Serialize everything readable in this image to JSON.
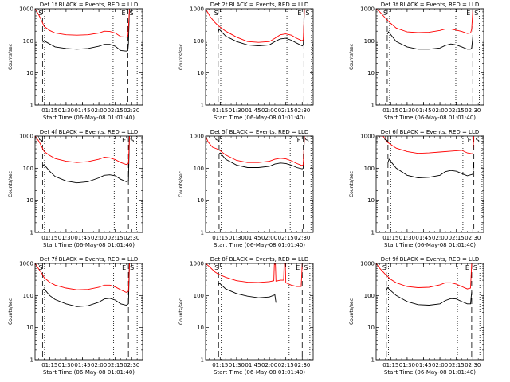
{
  "figure": {
    "background": "#ffffff"
  },
  "common": {
    "ylabel": "Counts/sec",
    "xlabel": "Start Time (06-May-08 01:01:40)",
    "xticklabels": [
      "01:15",
      "01:30",
      "01:45",
      "02:00",
      "02:15",
      "02:30"
    ],
    "yticklabels": [
      "1",
      "10",
      "100",
      "1000"
    ],
    "series_colors": {
      "events": "#000000",
      "lld": "#ff0000"
    },
    "marker_S": "S",
    "marker_E": "E"
  },
  "chart_data": [
    {
      "type": "line",
      "title": "Det 1f BLACK = Events, RED = LLD",
      "xlim": [
        "01:01:40",
        "02:40:00"
      ],
      "ylim": [
        1,
        1000
      ],
      "yscale": "log",
      "xlabel": "Start Time (06-May-08 01:01:40)",
      "ylabel": "Counts/sec",
      "vlines": {
        "dashed": [
          "01:08:30",
          "02:26:30"
        ],
        "dotted": [
          "01:10:20",
          "02:13:00",
          "02:35:00"
        ]
      },
      "series": [
        {
          "name": "BLACK = Events",
          "color": "#000000",
          "x": [
            "01:08:40",
            "01:10:00",
            "01:15:00",
            "01:20:00",
            "01:30:00",
            "01:40:00",
            "01:50:00",
            "02:00:00",
            "02:05:00",
            "02:10:00",
            "02:15:00",
            "02:20:00",
            "02:25:00",
            "02:26:30",
            "02:27:00",
            "02:28:00"
          ],
          "y": [
            90,
            100,
            80,
            65,
            58,
            55,
            58,
            68,
            78,
            78,
            68,
            50,
            48,
            50,
            80,
            1000
          ]
        },
        {
          "name": "RED = LLD",
          "color": "#ff0000",
          "x": [
            "01:01:40",
            "01:05:00",
            "01:08:00",
            "01:10:00",
            "01:15:00",
            "01:20:00",
            "01:30:00",
            "01:40:00",
            "01:50:00",
            "02:00:00",
            "02:05:00",
            "02:10:00",
            "02:15:00",
            "02:20:00",
            "02:25:00",
            "02:26:30",
            "02:27:00",
            "02:28:00"
          ],
          "y": [
            1000,
            650,
            400,
            280,
            210,
            175,
            155,
            150,
            155,
            175,
            200,
            195,
            175,
            135,
            130,
            140,
            250,
            1000
          ]
        }
      ]
    },
    {
      "type": "line",
      "title": "Det 2f BLACK = Events, RED = LLD",
      "xlim": [
        "01:01:40",
        "02:40:00"
      ],
      "ylim": [
        1,
        1000
      ],
      "yscale": "log",
      "xlabel": "Start Time (06-May-08 01:01:40)",
      "ylabel": "Counts/sec",
      "vlines": {
        "dashed": [
          "01:13:10",
          "02:31:30"
        ],
        "dotted": [
          "01:15:30",
          "02:16:00",
          "02:38:30"
        ]
      },
      "series": [
        {
          "name": "BLACK = Events",
          "color": "#000000",
          "x": [
            "01:13:10",
            "01:14:00",
            "01:20:00",
            "01:30:00",
            "01:40:00",
            "01:50:00",
            "02:00:00",
            "02:05:00",
            "02:10:00",
            "02:15:00",
            "02:20:00",
            "02:25:00",
            "02:30:00",
            "02:31:00",
            "02:32:00"
          ],
          "y": [
            180,
            230,
            140,
            95,
            75,
            70,
            75,
            95,
            115,
            120,
            105,
            85,
            70,
            75,
            1000
          ]
        },
        {
          "name": "RED = LLD",
          "color": "#ff0000",
          "x": [
            "01:01:40",
            "01:06:00",
            "01:10:00",
            "01:13:00",
            "01:20:00",
            "01:30:00",
            "01:40:00",
            "01:50:00",
            "02:00:00",
            "02:05:00",
            "02:10:00",
            "02:15:00",
            "02:20:00",
            "02:25:00",
            "02:30:00",
            "02:31:00",
            "02:32:00"
          ],
          "y": [
            1000,
            560,
            380,
            300,
            200,
            130,
            95,
            90,
            95,
            120,
            155,
            165,
            150,
            120,
            100,
            110,
            1000
          ]
        }
      ]
    },
    {
      "type": "line",
      "title": "Det 3f BLACK = Events, RED = LLD",
      "xlim": [
        "01:01:40",
        "02:40:00"
      ],
      "ylim": [
        1,
        1000
      ],
      "yscale": "log",
      "xlabel": "Start Time (06-May-08 01:01:40)",
      "ylabel": "Counts/sec",
      "vlines": {
        "dashed": [
          "01:11:50",
          "02:30:00"
        ],
        "dotted": [
          "01:14:00",
          "02:14:30",
          "02:36:00"
        ]
      },
      "series": [
        {
          "name": "BLACK = Events",
          "color": "#000000",
          "x": [
            "01:11:50",
            "01:13:00",
            "01:20:00",
            "01:30:00",
            "01:40:00",
            "01:50:00",
            "02:00:00",
            "02:05:00",
            "02:10:00",
            "02:15:00",
            "02:20:00",
            "02:25:00",
            "02:28:00",
            "02:29:00",
            "02:30:00"
          ],
          "y": [
            160,
            190,
            95,
            65,
            55,
            55,
            60,
            72,
            80,
            75,
            65,
            55,
            55,
            60,
            130
          ]
        },
        {
          "name": "RED = LLD",
          "color": "#ff0000",
          "x": [
            "01:01:40",
            "01:05:00",
            "01:10:00",
            "01:15:00",
            "01:20:00",
            "01:30:00",
            "01:40:00",
            "01:50:00",
            "02:00:00",
            "02:05:00",
            "02:10:00",
            "02:15:00",
            "02:20:00",
            "02:25:00",
            "02:28:00",
            "02:29:00",
            "02:30:00"
          ],
          "y": [
            1000,
            800,
            520,
            350,
            250,
            190,
            180,
            185,
            210,
            235,
            235,
            215,
            195,
            170,
            175,
            230,
            900
          ]
        }
      ]
    },
    {
      "type": "line",
      "title": "Det 4f BLACK = Events, RED = LLD",
      "xlim": [
        "01:01:40",
        "02:40:00"
      ],
      "ylim": [
        1,
        1000
      ],
      "yscale": "log",
      "xlabel": "Start Time (06-May-08 01:01:40)",
      "ylabel": "Counts/sec",
      "vlines": {
        "dashed": [
          "01:08:30",
          "02:27:00"
        ],
        "dotted": [
          "01:10:20",
          "02:14:00",
          "02:34:30"
        ]
      },
      "series": [
        {
          "name": "BLACK = Events",
          "color": "#000000",
          "x": [
            "01:08:40",
            "01:10:00",
            "01:15:00",
            "01:20:00",
            "01:30:00",
            "01:40:00",
            "01:50:00",
            "02:00:00",
            "02:05:00",
            "02:10:00",
            "02:15:00",
            "02:20:00",
            "02:25:00",
            "02:27:00",
            "02:28:00"
          ],
          "y": [
            120,
            130,
            80,
            55,
            40,
            35,
            38,
            50,
            60,
            62,
            58,
            45,
            38,
            40,
            1000
          ]
        },
        {
          "name": "RED = LLD",
          "color": "#ff0000",
          "x": [
            "01:01:40",
            "01:05:00",
            "01:08:00",
            "01:10:00",
            "01:15:00",
            "01:20:00",
            "01:30:00",
            "01:40:00",
            "01:50:00",
            "02:00:00",
            "02:05:00",
            "02:10:00",
            "02:15:00",
            "02:20:00",
            "02:25:00",
            "02:27:00",
            "02:28:00"
          ],
          "y": [
            1000,
            700,
            450,
            330,
            250,
            200,
            165,
            150,
            160,
            190,
            220,
            210,
            185,
            150,
            130,
            140,
            1000
          ]
        }
      ]
    },
    {
      "type": "line",
      "title": "Det 5f BLACK = Events, RED = LLD",
      "xlim": [
        "01:01:40",
        "02:40:00"
      ],
      "ylim": [
        1,
        1000
      ],
      "yscale": "log",
      "xlabel": "Start Time (06-May-08 01:01:40)",
      "ylabel": "Counts/sec",
      "vlines": {
        "dashed": [
          "01:14:00",
          "02:31:00"
        ],
        "dotted": [
          "01:16:00",
          "02:19:00",
          "02:38:00"
        ]
      },
      "series": [
        {
          "name": "BLACK = Events",
          "color": "#000000",
          "x": [
            "01:14:00",
            "01:15:00",
            "01:20:00",
            "01:30:00",
            "01:40:00",
            "01:50:00",
            "02:00:00",
            "02:05:00",
            "02:10:00",
            "02:15:00",
            "02:20:00",
            "02:25:00",
            "02:30:00",
            "02:31:00",
            "02:32:00"
          ],
          "y": [
            280,
            300,
            190,
            125,
            105,
            105,
            115,
            135,
            145,
            140,
            125,
            105,
            95,
            100,
            1000
          ]
        },
        {
          "name": "RED = LLD",
          "color": "#ff0000",
          "x": [
            "01:01:40",
            "01:04:00",
            "01:08:00",
            "01:12:00",
            "01:15:00",
            "01:20:00",
            "01:30:00",
            "01:40:00",
            "01:50:00",
            "02:00:00",
            "02:05:00",
            "02:10:00",
            "02:15:00",
            "02:20:00",
            "02:25:00",
            "02:30:00",
            "02:31:00",
            "02:32:00"
          ],
          "y": [
            1000,
            650,
            450,
            400,
            350,
            260,
            175,
            150,
            150,
            165,
            190,
            205,
            195,
            170,
            140,
            120,
            130,
            1000
          ]
        }
      ]
    },
    {
      "type": "line",
      "title": "Det 6f BLACK = Events, RED = LLD",
      "xlim": [
        "01:01:40",
        "02:40:00"
      ],
      "ylim": [
        1,
        1000
      ],
      "yscale": "log",
      "xlabel": "Start Time (06-May-08 01:01:40)",
      "ylabel": "Counts/sec",
      "vlines": {
        "dashed": [
          "01:12:30",
          "02:31:00"
        ],
        "dotted": [
          "01:15:00",
          "02:21:00",
          "02:38:30"
        ]
      },
      "series": [
        {
          "name": "BLACK = Events",
          "color": "#000000",
          "x": [
            "01:12:30",
            "01:13:30",
            "01:20:00",
            "01:30:00",
            "01:40:00",
            "01:50:00",
            "02:00:00",
            "02:05:00",
            "02:10:00",
            "02:15:00",
            "02:20:00",
            "02:25:00",
            "02:30:00",
            "02:31:00"
          ],
          "y": [
            150,
            190,
            100,
            60,
            50,
            52,
            60,
            78,
            85,
            80,
            68,
            58,
            65,
            150
          ]
        },
        {
          "name": "RED = LLD",
          "color": "#ff0000",
          "x": [
            "01:01:40",
            "01:08:00",
            "01:12:00",
            "01:20:00",
            "01:30:00",
            "01:40:00",
            "01:50:00",
            "02:00:00",
            "02:10:00",
            "02:20:00",
            "02:25:00",
            "02:30:00",
            "02:31:00"
          ],
          "y": [
            1000,
            1000,
            640,
            420,
            330,
            290,
            300,
            320,
            340,
            360,
            300,
            280,
            1000
          ]
        }
      ]
    },
    {
      "type": "line",
      "title": "Det 7f BLACK = Events, RED = LLD",
      "xlim": [
        "01:01:40",
        "02:40:00"
      ],
      "ylim": [
        1,
        1000
      ],
      "yscale": "log",
      "xlabel": "Start Time (06-May-08 01:01:40)",
      "ylabel": "Counts/sec",
      "vlines": {
        "dashed": [
          "01:08:30",
          "02:27:00"
        ],
        "dotted": [
          "01:10:20",
          "02:13:30",
          "02:35:00"
        ]
      },
      "series": [
        {
          "name": "BLACK = Events",
          "color": "#000000",
          "x": [
            "01:08:40",
            "01:10:00",
            "01:15:00",
            "01:20:00",
            "01:30:00",
            "01:40:00",
            "01:50:00",
            "02:00:00",
            "02:05:00",
            "02:10:00",
            "02:15:00",
            "02:20:00",
            "02:25:00",
            "02:27:00",
            "02:28:00"
          ],
          "y": [
            150,
            160,
            100,
            75,
            55,
            45,
            48,
            62,
            78,
            82,
            72,
            55,
            50,
            55,
            1000
          ]
        },
        {
          "name": "RED = LLD",
          "color": "#ff0000",
          "x": [
            "01:01:40",
            "01:04:00",
            "01:08:00",
            "01:10:00",
            "01:15:00",
            "01:20:00",
            "01:30:00",
            "01:40:00",
            "01:50:00",
            "02:00:00",
            "02:05:00",
            "02:10:00",
            "02:15:00",
            "02:20:00",
            "02:25:00",
            "02:27:00",
            "02:28:00"
          ],
          "y": [
            1000,
            750,
            480,
            360,
            260,
            210,
            170,
            150,
            155,
            180,
            210,
            210,
            185,
            150,
            125,
            135,
            1000
          ]
        }
      ]
    },
    {
      "type": "line",
      "title": "Det 8f BLACK = Events, RED = LLD",
      "xlim": [
        "01:01:40",
        "02:40:00"
      ],
      "ylim": [
        1,
        1000
      ],
      "yscale": "log",
      "xlabel": "Start Time (06-May-08 01:01:40)",
      "ylabel": "Counts/sec",
      "vlines": {
        "dashed": [
          "01:13:30",
          "02:30:00"
        ],
        "dotted": [
          "01:16:00",
          "02:18:00",
          "02:37:00"
        ]
      },
      "series": [
        {
          "name": "BLACK = Events",
          "color": "#000000",
          "x": [
            "01:13:30",
            "01:14:30",
            "01:20:00",
            "01:30:00",
            "01:40:00",
            "01:50:00",
            "02:00:00",
            "02:05:00",
            "02:06:00"
          ],
          "y": [
            220,
            240,
            160,
            115,
            95,
            85,
            90,
            105,
            60
          ]
        },
        {
          "name": "RED = LLD",
          "color": "#ff0000",
          "x": [
            "01:01:40",
            "01:05:00",
            "01:10:00",
            "01:13:00",
            "01:20:00",
            "01:30:00",
            "01:40:00",
            "01:50:00",
            "02:00:00",
            "02:04:00",
            "02:04:30",
            "02:05:30",
            "02:06:00",
            "02:10:00",
            "02:13:00",
            "02:13:30",
            "02:14:30",
            "02:15:00",
            "02:20:00",
            "02:25:00",
            "02:29:00",
            "02:30:00"
          ],
          "y": [
            1000,
            800,
            550,
            470,
            370,
            290,
            260,
            255,
            270,
            290,
            1000,
            1000,
            280,
            300,
            300,
            1000,
            1000,
            250,
            210,
            190,
            190,
            1000
          ]
        }
      ]
    },
    {
      "type": "line",
      "title": "Det 9f BLACK = Events, RED = LLD",
      "xlim": [
        "01:01:40",
        "02:40:00"
      ],
      "ylim": [
        1,
        1000
      ],
      "yscale": "log",
      "xlabel": "Start Time (06-May-08 01:01:40)",
      "ylabel": "Counts/sec",
      "vlines": {
        "dashed": [
          "01:11:00",
          "02:29:00"
        ],
        "dotted": [
          "01:13:00",
          "02:16:00",
          "02:36:30"
        ]
      },
      "series": [
        {
          "name": "BLACK = Events",
          "color": "#000000",
          "x": [
            "01:11:00",
            "01:12:00",
            "01:20:00",
            "01:30:00",
            "01:40:00",
            "01:50:00",
            "02:00:00",
            "02:05:00",
            "02:10:00",
            "02:15:00",
            "02:20:00",
            "02:25:00",
            "02:28:00",
            "02:29:00"
          ],
          "y": [
            140,
            175,
            100,
            65,
            52,
            50,
            55,
            70,
            80,
            78,
            65,
            55,
            55,
            130
          ]
        },
        {
          "name": "RED = LLD",
          "color": "#ff0000",
          "x": [
            "01:01:40",
            "01:05:00",
            "01:10:00",
            "01:15:00",
            "01:20:00",
            "01:30:00",
            "01:40:00",
            "01:50:00",
            "02:00:00",
            "02:05:00",
            "02:10:00",
            "02:15:00",
            "02:20:00",
            "02:25:00",
            "02:28:00",
            "02:29:00"
          ],
          "y": [
            1000,
            700,
            460,
            320,
            250,
            190,
            175,
            180,
            215,
            250,
            250,
            225,
            190,
            160,
            170,
            1000
          ]
        }
      ]
    }
  ]
}
